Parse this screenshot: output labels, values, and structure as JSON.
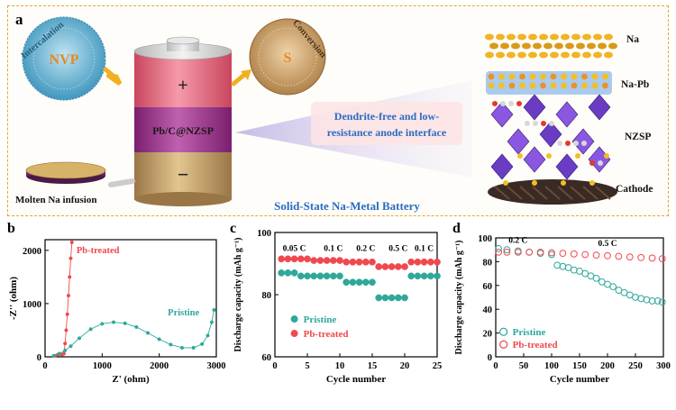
{
  "panel_a": {
    "letter": "a",
    "nvp_label": "NVP",
    "intercalation_label": "Intercalation",
    "s_label": "S",
    "conversion_label": "Conversion",
    "plus": "+",
    "minus": "−",
    "electrolyte_label": "Pb/C@NZSP",
    "molten_label": "Molten Na infusion",
    "interface_label": "Dendrite-free and low-resistance anode interface",
    "interface_line1": "Dendrite-free and low-",
    "interface_line2": "resistance anode interface",
    "battery_title": "Solid-State Na-Metal Battery",
    "layer_na": "Na",
    "layer_napb": "Na-Pb",
    "layer_nzsp": "NZSP",
    "layer_cathode": "Cathode",
    "colors": {
      "border": "#e0a82e",
      "nvp": "#4ea6c8",
      "s": "#c2905a",
      "arrow": "#f0b020",
      "title": "#2b6cc4",
      "cap_top": "#d85a70",
      "cap_mid": "#9b2e86",
      "cap_bot": "#b89566"
    }
  },
  "chart_data": [
    {
      "letter": "b",
      "type": "scatter",
      "xlabel": "Z' (ohm)",
      "ylabel": "-Z'' (ohm)",
      "xlim": [
        0,
        3000
      ],
      "ylim": [
        0,
        2200
      ],
      "xticks": [
        0,
        1000,
        2000,
        3000
      ],
      "yticks": [
        0,
        1000,
        2000
      ],
      "annotations": [
        "Pb-treated",
        "Pristine"
      ],
      "series": [
        {
          "name": "Pb-treated",
          "color": "#f0484f",
          "x": [
            180,
            220,
            260,
            300,
            330,
            350,
            370,
            390,
            410,
            430,
            450,
            470
          ],
          "y": [
            20,
            40,
            50,
            40,
            60,
            250,
            500,
            800,
            1150,
            1500,
            1850,
            2150
          ]
        },
        {
          "name": "Pristine",
          "color": "#2fa89a",
          "x": [
            150,
            250,
            350,
            450,
            600,
            800,
            1000,
            1200,
            1400,
            1600,
            1800,
            2000,
            2200,
            2400,
            2600,
            2750,
            2850,
            2920,
            2960
          ],
          "y": [
            20,
            60,
            120,
            200,
            350,
            520,
            620,
            650,
            630,
            560,
            450,
            330,
            230,
            170,
            170,
            240,
            400,
            650,
            880
          ]
        }
      ]
    },
    {
      "letter": "c",
      "type": "scatter",
      "xlabel": "Cycle number",
      "ylabel": "Discharge capacity (mAh g⁻¹)",
      "xlim": [
        0,
        25
      ],
      "ylim": [
        60,
        100
      ],
      "xticks": [
        0,
        5,
        10,
        15,
        20,
        25
      ],
      "yticks": [
        60,
        80,
        100
      ],
      "rate_labels": [
        "0.05 C",
        "0.1 C",
        "0.2 C",
        "0.5 C",
        "0.1 C"
      ],
      "legend": [
        "Pristine",
        "Pb-treated"
      ],
      "series": [
        {
          "name": "Pristine",
          "color": "#2fa89a",
          "x": [
            1,
            2,
            3,
            4,
            5,
            6,
            7,
            8,
            9,
            10,
            11,
            12,
            13,
            14,
            15,
            16,
            17,
            18,
            19,
            20,
            21,
            22,
            23,
            24,
            25
          ],
          "y": [
            87,
            87,
            87,
            86,
            86,
            86,
            86,
            86,
            86,
            86,
            84,
            84,
            84,
            84,
            84,
            79,
            79,
            79,
            79,
            79,
            86,
            86,
            86,
            86,
            86
          ]
        },
        {
          "name": "Pb-treated",
          "color": "#f0484f",
          "x": [
            1,
            2,
            3,
            4,
            5,
            6,
            7,
            8,
            9,
            10,
            11,
            12,
            13,
            14,
            15,
            16,
            17,
            18,
            19,
            20,
            21,
            22,
            23,
            24,
            25
          ],
          "y": [
            91.5,
            91.5,
            91.5,
            91.5,
            91.5,
            91,
            91,
            91,
            91,
            91,
            90.5,
            90.5,
            90.5,
            90.5,
            90.5,
            89,
            89,
            89,
            89,
            89,
            90.5,
            90.5,
            90.5,
            90.5,
            90.5
          ]
        }
      ]
    },
    {
      "letter": "d",
      "type": "scatter",
      "xlabel": "Cycle number",
      "ylabel": "Discharge capacity (mAh g⁻¹)",
      "xlim": [
        0,
        300
      ],
      "ylim": [
        0,
        100
      ],
      "xticks": [
        0,
        50,
        100,
        150,
        200,
        250,
        300
      ],
      "yticks": [
        0,
        20,
        40,
        60,
        80,
        100
      ],
      "rate_labels": [
        "0.2 C",
        "0.5 C"
      ],
      "legend": [
        "Pristine",
        "Pb-treated"
      ],
      "series": [
        {
          "name": "Pristine",
          "color": "#2fa89a",
          "x": [
            5,
            20,
            40,
            60,
            80,
            100,
            110,
            120,
            130,
            140,
            150,
            160,
            170,
            180,
            190,
            200,
            210,
            220,
            230,
            240,
            250,
            260,
            270,
            280,
            290,
            298
          ],
          "y": [
            91,
            90,
            89,
            88,
            87,
            86,
            77,
            76,
            75,
            73,
            72,
            70,
            68,
            66,
            63,
            61,
            59,
            56,
            54,
            52,
            50,
            49,
            48,
            47,
            47,
            46
          ]
        },
        {
          "name": "Pb-treated",
          "color": "#f0484f",
          "x": [
            5,
            20,
            40,
            60,
            80,
            100,
            120,
            140,
            160,
            180,
            200,
            220,
            240,
            260,
            280,
            298
          ],
          "y": [
            88,
            88,
            88,
            88,
            88,
            87.5,
            87,
            86.5,
            86,
            85.5,
            85,
            84.5,
            84,
            83.5,
            83,
            82.5
          ]
        }
      ]
    }
  ]
}
